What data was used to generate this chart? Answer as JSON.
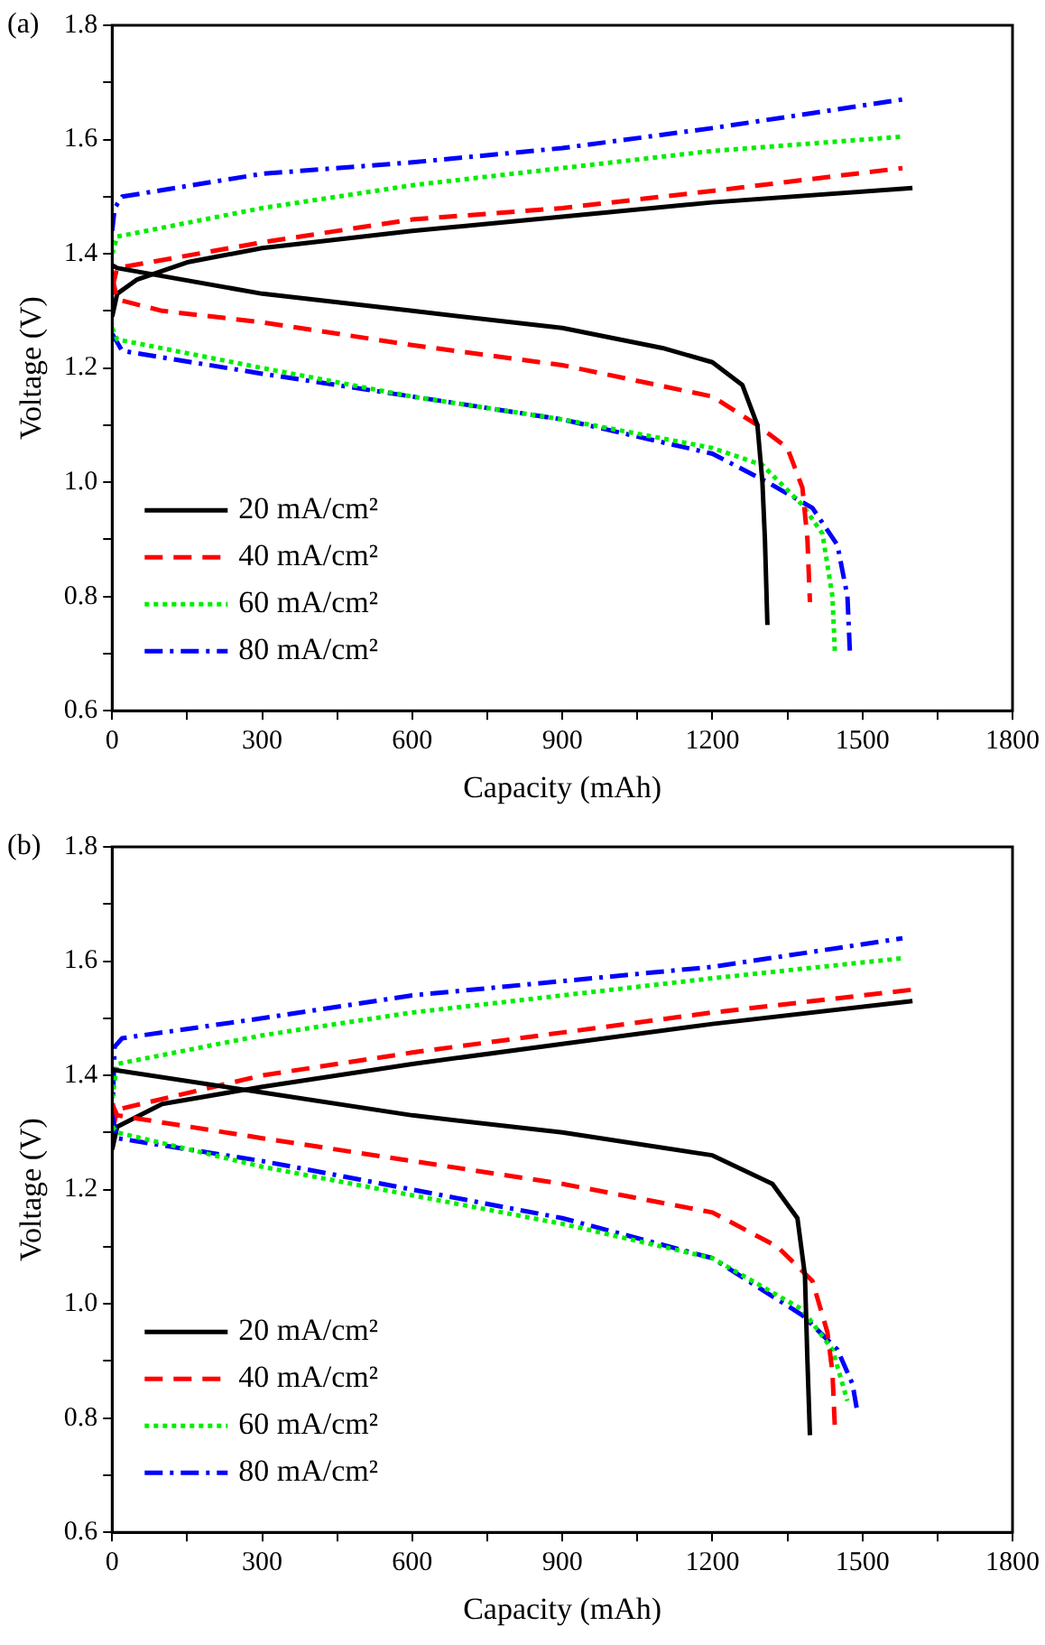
{
  "chart_data": [
    {
      "type": "line",
      "xlabel": "Capacity (mAh)",
      "ylabel": "Voltage (V)",
      "annotations": [
        "(a)"
      ],
      "legend": "bottom left",
      "grid": false,
      "xlim": [
        0,
        1800
      ],
      "xticks": [
        0,
        {
          "value": 150,
          "label": null
        },
        300,
        {
          "value": 450,
          "label": null
        },
        600,
        {
          "value": 750,
          "label": null
        },
        900,
        {
          "value": 1050,
          "label": null
        },
        1200,
        {
          "value": 1350,
          "label": null
        },
        1500,
        {
          "value": 1650,
          "label": null
        },
        1800
      ],
      "ylim": [
        0.6,
        1.8
      ],
      "yticks": [
        0.6,
        {
          "value": 0.7,
          "label": null
        },
        0.8,
        {
          "value": 0.9,
          "label": null
        },
        {
          "value": 1,
          "label": "1.0"
        },
        {
          "value": 1.1,
          "label": null
        },
        1.2,
        {
          "value": 1.3,
          "label": null
        },
        1.4,
        {
          "value": 1.5,
          "label": null
        },
        1.6,
        {
          "value": 1.7,
          "label": null
        },
        1.8
      ],
      "series": [
        {
          "name": "20 mA/cm²",
          "color": "#000000",
          "line_style": "solid",
          "x": [
            0,
            10,
            300,
            600,
            900,
            1100,
            1200,
            1260,
            1290,
            1300,
            1305,
            1310
          ],
          "values": [
            1.38,
            1.375,
            1.33,
            1.3,
            1.27,
            1.235,
            1.21,
            1.17,
            1.1,
            1.0,
            0.9,
            0.75
          ]
        },
        {
          "name": "40 mA/cm²",
          "color": "#ff0000",
          "line_style": "dashed",
          "x": [
            0,
            10,
            100,
            300,
            600,
            900,
            1200,
            1290,
            1350,
            1380,
            1390,
            1395
          ],
          "values": [
            1.36,
            1.32,
            1.3,
            1.28,
            1.24,
            1.205,
            1.15,
            1.1,
            1.06,
            0.99,
            0.9,
            0.79
          ]
        },
        {
          "name": "60 mA/cm²",
          "color": "#00ee00",
          "line_style": "dotted",
          "x": [
            0,
            10,
            300,
            600,
            900,
            1200,
            1300,
            1380,
            1420,
            1440,
            1445
          ],
          "values": [
            1.27,
            1.25,
            1.2,
            1.15,
            1.11,
            1.06,
            1.03,
            0.96,
            0.91,
            0.8,
            0.7
          ]
        },
        {
          "name": "80 mA/cm²",
          "color": "#0000ff",
          "line_style": "dashdot",
          "x": [
            0,
            20,
            300,
            600,
            900,
            1200,
            1310,
            1400,
            1450,
            1470,
            1475
          ],
          "values": [
            1.26,
            1.23,
            1.19,
            1.15,
            1.11,
            1.05,
            1.0,
            0.955,
            0.89,
            0.8,
            0.7
          ]
        },
        {
          "color": "#000000",
          "line_style": "solid",
          "x": [
            0,
            10,
            50,
            150,
            300,
            600,
            900,
            1200,
            1600
          ],
          "values": [
            1.29,
            1.33,
            1.355,
            1.385,
            1.41,
            1.44,
            1.465,
            1.49,
            1.515
          ]
        },
        {
          "color": "#ff0000",
          "line_style": "dashed",
          "x": [
            0,
            10,
            300,
            600,
            900,
            1200,
            1580
          ],
          "values": [
            1.34,
            1.375,
            1.42,
            1.46,
            1.48,
            1.51,
            1.55
          ]
        },
        {
          "color": "#00ee00",
          "line_style": "dotted",
          "x": [
            0,
            10,
            300,
            600,
            900,
            1200,
            1580
          ],
          "values": [
            1.4,
            1.43,
            1.48,
            1.52,
            1.55,
            1.58,
            1.605
          ]
        },
        {
          "color": "#0000ff",
          "line_style": "dashdot",
          "x": [
            0,
            5,
            20,
            300,
            600,
            900,
            1200,
            1580
          ],
          "values": [
            1.44,
            1.48,
            1.5,
            1.54,
            1.56,
            1.585,
            1.62,
            1.67
          ]
        }
      ]
    },
    {
      "type": "line",
      "xlabel": "Capacity (mAh)",
      "ylabel": "Voltage (V)",
      "annotations": [
        "(b)"
      ],
      "legend": "bottom left",
      "grid": false,
      "xlim": [
        0,
        1800
      ],
      "xticks": [
        0,
        {
          "value": 150,
          "label": null
        },
        300,
        {
          "value": 450,
          "label": null
        },
        600,
        {
          "value": 750,
          "label": null
        },
        900,
        {
          "value": 1050,
          "label": null
        },
        1200,
        {
          "value": 1350,
          "label": null
        },
        1500,
        {
          "value": 1650,
          "label": null
        },
        1800
      ],
      "ylim": [
        0.6,
        1.8
      ],
      "yticks": [
        0.6,
        {
          "value": 0.7,
          "label": null
        },
        0.8,
        {
          "value": 0.9,
          "label": null
        },
        {
          "value": 1,
          "label": "1.0"
        },
        {
          "value": 1.1,
          "label": null
        },
        1.2,
        {
          "value": 1.3,
          "label": null
        },
        1.4,
        {
          "value": 1.5,
          "label": null
        },
        1.6,
        {
          "value": 1.7,
          "label": null
        },
        1.8
      ],
      "series": [
        {
          "name": "20 mA/cm²",
          "color": "#000000",
          "line_style": "solid",
          "x": [
            0,
            300,
            600,
            900,
            1200,
            1320,
            1370,
            1385,
            1390,
            1395
          ],
          "values": [
            1.41,
            1.37,
            1.33,
            1.3,
            1.26,
            1.21,
            1.15,
            1.05,
            0.9,
            0.77
          ]
        },
        {
          "name": "40 mA/cm²",
          "color": "#ff0000",
          "line_style": "dashed",
          "x": [
            0,
            10,
            300,
            600,
            900,
            1200,
            1330,
            1400,
            1430,
            1440,
            1445
          ],
          "values": [
            1.35,
            1.33,
            1.29,
            1.25,
            1.21,
            1.16,
            1.1,
            1.04,
            0.95,
            0.88,
            0.78
          ]
        },
        {
          "name": "60 mA/cm²",
          "color": "#00ee00",
          "line_style": "dotted",
          "x": [
            0,
            10,
            300,
            600,
            900,
            1200,
            1380,
            1440,
            1460,
            1470
          ],
          "values": [
            1.31,
            1.3,
            1.24,
            1.19,
            1.14,
            1.08,
            0.99,
            0.92,
            0.86,
            0.83
          ]
        },
        {
          "name": "80 mA/cm²",
          "color": "#0000ff",
          "line_style": "dashdot",
          "x": [
            0,
            10,
            300,
            600,
            900,
            1200,
            1380,
            1450,
            1480,
            1490
          ],
          "values": [
            1.33,
            1.29,
            1.25,
            1.2,
            1.15,
            1.08,
            0.98,
            0.92,
            0.86,
            0.81
          ]
        },
        {
          "color": "#000000",
          "line_style": "solid",
          "x": [
            0,
            10,
            100,
            300,
            600,
            900,
            1200,
            1600
          ],
          "values": [
            1.27,
            1.31,
            1.35,
            1.38,
            1.42,
            1.455,
            1.49,
            1.53
          ]
        },
        {
          "color": "#ff0000",
          "line_style": "dashed",
          "x": [
            0,
            10,
            300,
            600,
            900,
            1200,
            1600
          ],
          "values": [
            1.3,
            1.34,
            1.4,
            1.44,
            1.475,
            1.51,
            1.55
          ]
        },
        {
          "color": "#00ee00",
          "line_style": "dotted",
          "x": [
            0,
            10,
            300,
            600,
            900,
            1200,
            1580
          ],
          "values": [
            1.36,
            1.42,
            1.47,
            1.51,
            1.54,
            1.57,
            1.605
          ]
        },
        {
          "color": "#0000ff",
          "line_style": "dashdot",
          "x": [
            0,
            5,
            20,
            300,
            600,
            900,
            1200,
            1580
          ],
          "values": [
            1.32,
            1.45,
            1.465,
            1.5,
            1.54,
            1.565,
            1.59,
            1.64
          ]
        }
      ]
    }
  ]
}
